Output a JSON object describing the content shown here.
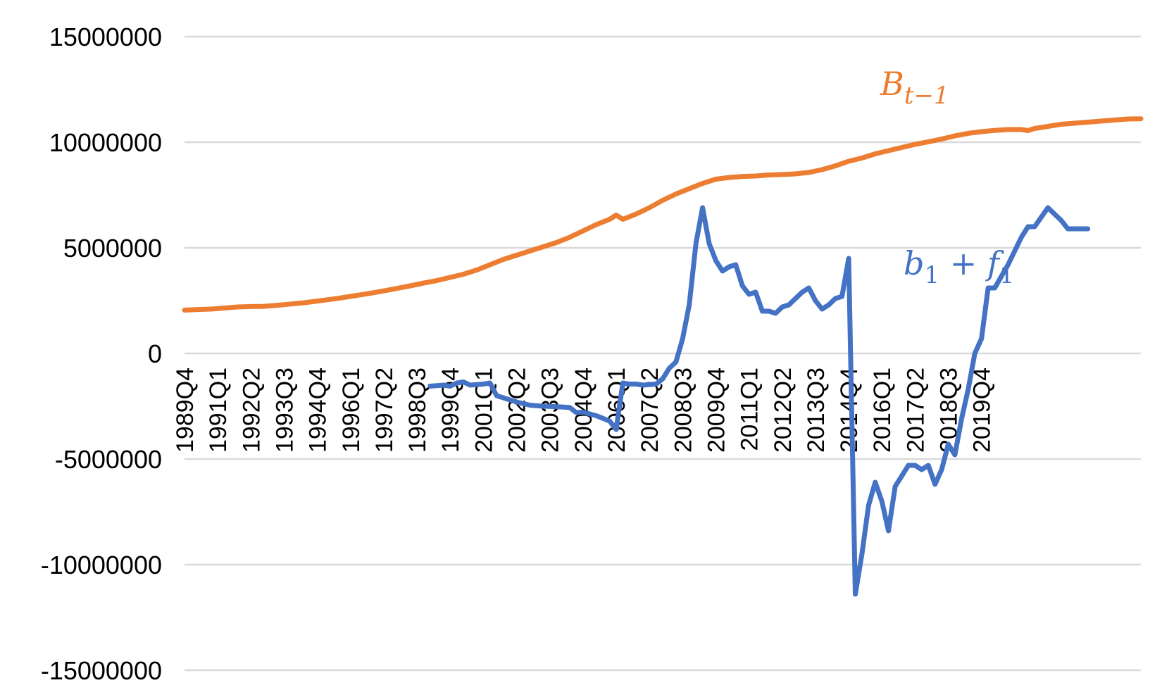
{
  "chart_data": {
    "type": "line",
    "title": "",
    "xlabel": "",
    "ylabel": "",
    "ylim": [
      -15000000,
      15000000
    ],
    "yticks": [
      15000000,
      10000000,
      5000000,
      0,
      -5000000,
      -10000000,
      -15000000
    ],
    "ytick_labels": [
      "15000000",
      "10000000",
      "5000000",
      "0",
      "-5000000",
      "-10000000",
      "-15000000"
    ],
    "grid": true,
    "x_start": "1989Q4",
    "x_end": "2020Q4",
    "xtick_labels": [
      "1989Q4",
      "1991Q1",
      "1992Q2",
      "1993Q3",
      "1994Q4",
      "1996Q1",
      "1997Q2",
      "1998Q3",
      "1999Q4",
      "2001Q1",
      "2002Q2",
      "2003Q3",
      "2004Q4",
      "2006Q1",
      "2007Q2",
      "2008Q3",
      "2009Q4",
      "2011Q1",
      "2012Q2",
      "2013Q3",
      "2014Q4",
      "2016Q1",
      "2017Q2",
      "2018Q3",
      "2019Q4"
    ],
    "colors": {
      "B": "#ED7D31",
      "bf": "#4472C4",
      "grid": "#D9D9D9"
    },
    "series": [
      {
        "name": "B_{t-1}",
        "color": "#ED7D31",
        "points": [
          [
            0,
            2050000
          ],
          [
            2,
            2080000
          ],
          [
            4,
            2100000
          ],
          [
            6,
            2150000
          ],
          [
            8,
            2200000
          ],
          [
            10,
            2220000
          ],
          [
            12,
            2230000
          ],
          [
            14,
            2280000
          ],
          [
            16,
            2340000
          ],
          [
            18,
            2400000
          ],
          [
            20,
            2480000
          ],
          [
            22,
            2560000
          ],
          [
            24,
            2650000
          ],
          [
            26,
            2750000
          ],
          [
            28,
            2850000
          ],
          [
            30,
            2960000
          ],
          [
            32,
            3080000
          ],
          [
            34,
            3200000
          ],
          [
            36,
            3330000
          ],
          [
            38,
            3450000
          ],
          [
            40,
            3600000
          ],
          [
            42,
            3750000
          ],
          [
            44,
            3950000
          ],
          [
            46,
            4200000
          ],
          [
            48,
            4450000
          ],
          [
            50,
            4650000
          ],
          [
            52,
            4850000
          ],
          [
            54,
            5050000
          ],
          [
            56,
            5250000
          ],
          [
            58,
            5500000
          ],
          [
            60,
            5800000
          ],
          [
            62,
            6100000
          ],
          [
            64,
            6350000
          ],
          [
            65,
            6550000
          ],
          [
            66,
            6350000
          ],
          [
            68,
            6600000
          ],
          [
            70,
            6900000
          ],
          [
            72,
            7250000
          ],
          [
            74,
            7550000
          ],
          [
            76,
            7800000
          ],
          [
            78,
            8050000
          ],
          [
            80,
            8250000
          ],
          [
            82,
            8330000
          ],
          [
            84,
            8380000
          ],
          [
            86,
            8400000
          ],
          [
            88,
            8450000
          ],
          [
            90,
            8470000
          ],
          [
            92,
            8500000
          ],
          [
            94,
            8570000
          ],
          [
            96,
            8700000
          ],
          [
            98,
            8880000
          ],
          [
            100,
            9100000
          ],
          [
            102,
            9250000
          ],
          [
            104,
            9450000
          ],
          [
            106,
            9600000
          ],
          [
            108,
            9750000
          ],
          [
            110,
            9900000
          ],
          [
            112,
            10020000
          ],
          [
            114,
            10150000
          ],
          [
            116,
            10300000
          ],
          [
            118,
            10420000
          ],
          [
            120,
            10500000
          ],
          [
            122,
            10560000
          ],
          [
            124,
            10600000
          ],
          [
            126,
            10600000
          ],
          [
            127,
            10550000
          ],
          [
            128,
            10650000
          ],
          [
            130,
            10750000
          ],
          [
            132,
            10850000
          ],
          [
            134,
            10900000
          ],
          [
            136,
            10950000
          ],
          [
            138,
            11000000
          ],
          [
            140,
            11050000
          ],
          [
            142,
            11100000
          ],
          [
            144,
            11110000
          ]
        ]
      },
      {
        "name": "b_1 + f_1",
        "color": "#4472C4",
        "points": [
          [
            37,
            -1550000
          ],
          [
            39,
            -1500000
          ],
          [
            40,
            -1550000
          ],
          [
            41,
            -1400000
          ],
          [
            42,
            -1350000
          ],
          [
            43,
            -1500000
          ],
          [
            45,
            -1450000
          ],
          [
            46,
            -1400000
          ],
          [
            47,
            -2000000
          ],
          [
            48,
            -2100000
          ],
          [
            50,
            -2300000
          ],
          [
            52,
            -2450000
          ],
          [
            54,
            -2500000
          ],
          [
            56,
            -2520000
          ],
          [
            58,
            -2560000
          ],
          [
            59,
            -2800000
          ],
          [
            60,
            -2780000
          ],
          [
            62,
            -2950000
          ],
          [
            64,
            -3200000
          ],
          [
            65,
            -3600000
          ],
          [
            66,
            -1400000
          ],
          [
            67,
            -1450000
          ],
          [
            68,
            -1450000
          ],
          [
            69,
            -1500000
          ],
          [
            71,
            -1450000
          ],
          [
            72,
            -1200000
          ],
          [
            73,
            -700000
          ],
          [
            74,
            -400000
          ],
          [
            75,
            700000
          ],
          [
            76,
            2300000
          ],
          [
            77,
            5200000
          ],
          [
            78,
            6900000
          ],
          [
            79,
            5200000
          ],
          [
            80,
            4400000
          ],
          [
            81,
            3900000
          ],
          [
            82,
            4100000
          ],
          [
            83,
            4200000
          ],
          [
            84,
            3200000
          ],
          [
            85,
            2800000
          ],
          [
            86,
            2900000
          ],
          [
            87,
            2000000
          ],
          [
            88,
            2000000
          ],
          [
            89,
            1900000
          ],
          [
            90,
            2200000
          ],
          [
            91,
            2300000
          ],
          [
            92,
            2600000
          ],
          [
            93,
            2900000
          ],
          [
            94,
            3100000
          ],
          [
            95,
            2500000
          ],
          [
            96,
            2100000
          ],
          [
            97,
            2300000
          ],
          [
            98,
            2600000
          ],
          [
            99,
            2700000
          ],
          [
            100,
            4500000
          ],
          [
            101,
            -11400000
          ],
          [
            102,
            -9500000
          ],
          [
            103,
            -7200000
          ],
          [
            104,
            -6100000
          ],
          [
            105,
            -7000000
          ],
          [
            106,
            -8400000
          ],
          [
            107,
            -6300000
          ],
          [
            108,
            -5800000
          ],
          [
            109,
            -5300000
          ],
          [
            110,
            -5300000
          ],
          [
            111,
            -5500000
          ],
          [
            112,
            -5300000
          ],
          [
            113,
            -6200000
          ],
          [
            114,
            -5500000
          ],
          [
            115,
            -4300000
          ],
          [
            116,
            -4800000
          ],
          [
            117,
            -3100000
          ],
          [
            118,
            -1700000
          ],
          [
            119,
            0
          ],
          [
            120,
            700000
          ],
          [
            121,
            3100000
          ],
          [
            122,
            3100000
          ],
          [
            124,
            4200000
          ],
          [
            126,
            5500000
          ],
          [
            127,
            6000000
          ],
          [
            128,
            6000000
          ],
          [
            130,
            6900000
          ],
          [
            132,
            6300000
          ],
          [
            133,
            5900000
          ],
          [
            134,
            5900000
          ],
          [
            136,
            5900000
          ]
        ]
      }
    ],
    "annotations": [
      {
        "base": "B",
        "sub": "t−1",
        "color": "#ED7D31"
      },
      {
        "base": "b",
        "sub1": "1",
        "op": " + ",
        "base2": "f",
        "sub2": "1",
        "color": "#4472C4"
      }
    ]
  }
}
